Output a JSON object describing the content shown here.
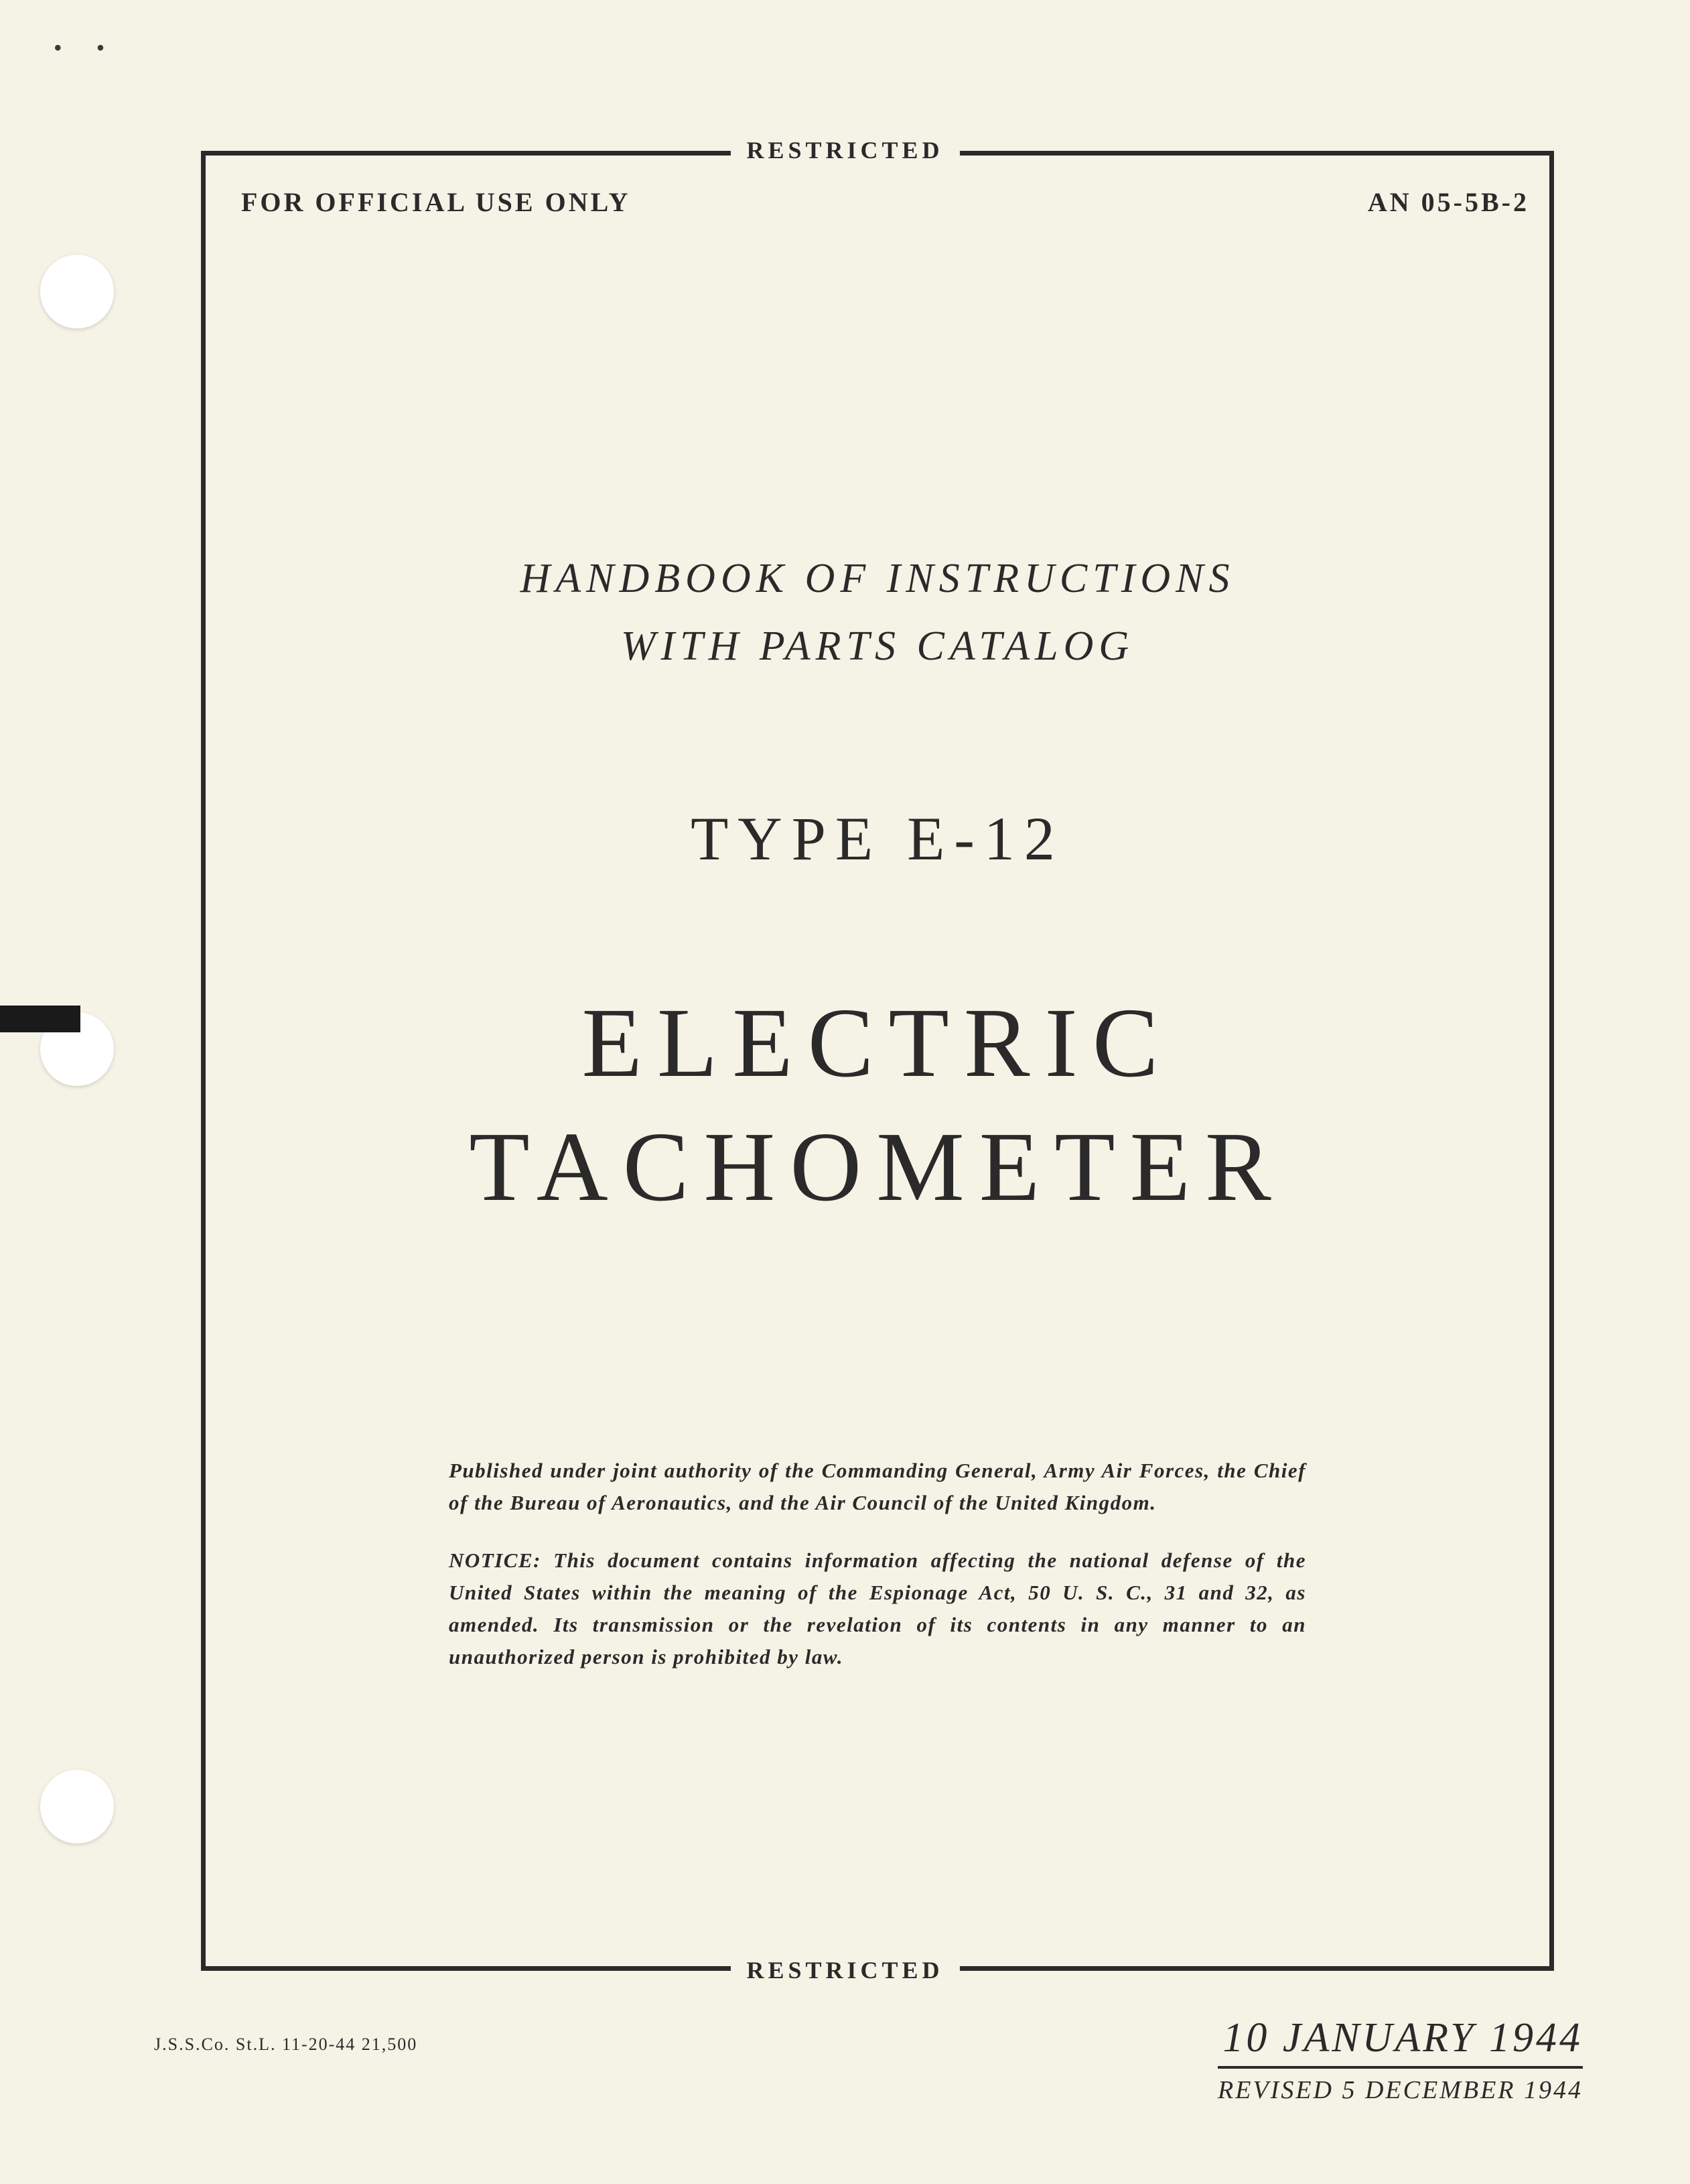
{
  "classification_top": "RESTRICTED",
  "classification_bottom": "RESTRICTED",
  "header": {
    "left": "FOR OFFICIAL USE ONLY",
    "right": "AN 05-5B-2"
  },
  "title": {
    "handbook_line1": "HANDBOOK OF INSTRUCTIONS",
    "handbook_line2": "WITH PARTS CATALOG",
    "type_line": "TYPE E-12",
    "main_line1": "ELECTRIC",
    "main_line2": "TACHOMETER"
  },
  "notice": {
    "published": "Published under joint authority of the Commanding General, Army Air Forces, the Chief of the Bureau of Aeronautics, and the Air Council of the United Kingdom.",
    "security": "NOTICE: This document contains information affecting the national defense of the United States within the meaning of the Espionage Act, 50 U. S. C., 31 and 32, as amended. Its transmission or the revelation of its contents in any manner to an unauthorized person is prohibited by law."
  },
  "footer": {
    "printer": "J.S.S.Co. St.L.  11-20-44  21,500",
    "date_main": "10 JANUARY 1944",
    "date_revised": "REVISED 5 DECEMBER 1944"
  },
  "colors": {
    "paper": "#f5f2e6",
    "ink": "#2a2a2a",
    "hole": "#ffffff"
  },
  "fontsizes": {
    "classification": 36,
    "header": 40,
    "handbook": 62,
    "type": 92,
    "main_title": 148,
    "notice": 31,
    "date_main": 62,
    "date_revised": 38,
    "printer": 26
  }
}
